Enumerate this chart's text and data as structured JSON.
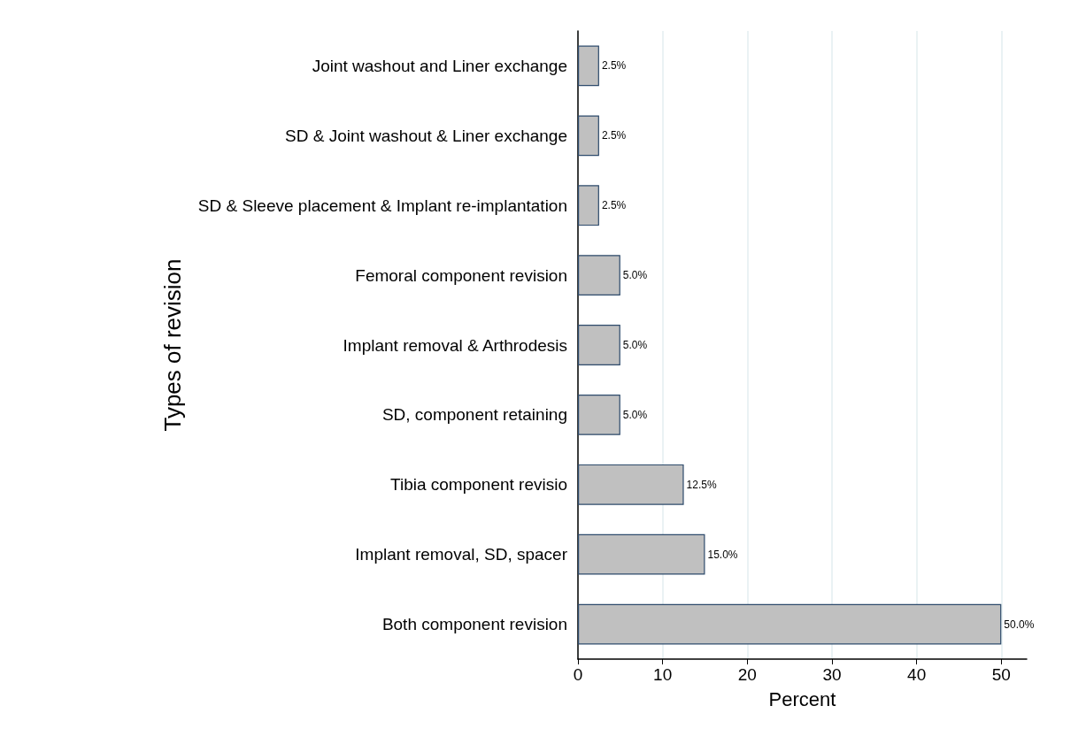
{
  "chart_data": {
    "type": "bar",
    "orientation": "horizontal",
    "xlabel": "Percent",
    "ylabel": "Types of revision",
    "categories": [
      "Joint washout and Liner exchange",
      "SD & Joint washout & Liner exchange",
      "SD & Sleeve placement & Implant re-implantation",
      "Femoral component revision",
      "Implant removal & Arthrodesis",
      "SD, component retaining",
      "Tibia component revisio",
      "Implant removal, SD, spacer",
      "Both component revision"
    ],
    "values": [
      2.5,
      2.5,
      2.5,
      5,
      5,
      5,
      12.5,
      15,
      50
    ],
    "value_labels": [
      "2.5%",
      "2.5%",
      "2.5%",
      "5.0%",
      "5.0%",
      "5.0%",
      "12.5%",
      "15.0%",
      "50.0%"
    ],
    "color": "#c0c0c0",
    "xlim": [
      0,
      53
    ],
    "xticks": [
      0,
      10,
      20,
      30,
      40,
      50
    ],
    "grid": "x"
  }
}
